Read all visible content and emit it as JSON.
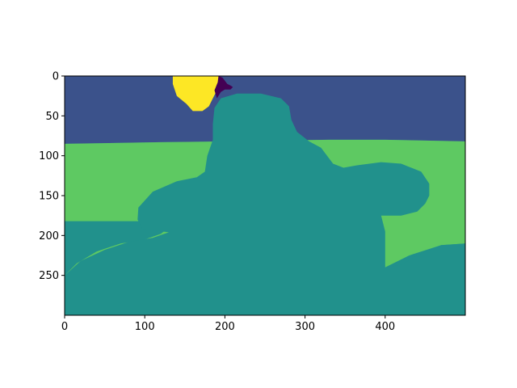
{
  "chart_data": {
    "type": "heatmap",
    "title": "",
    "xlabel": "",
    "ylabel": "",
    "xlim": [
      0,
      500
    ],
    "ylim": [
      300,
      0
    ],
    "grid": false,
    "x_ticks": [
      "0",
      "100",
      "200",
      "300",
      "400"
    ],
    "y_ticks": [
      "0",
      "50",
      "100",
      "150",
      "200",
      "250"
    ],
    "colormap": "viridis",
    "classes": [
      {
        "id": 0,
        "color": "#440154"
      },
      {
        "id": 1,
        "color": "#3b528b"
      },
      {
        "id": 2,
        "color": "#21918c"
      },
      {
        "id": 3,
        "color": "#5ec962"
      },
      {
        "id": 4,
        "color": "#fde725"
      }
    ],
    "regions": [
      {
        "class": 1,
        "polygon": [
          [
            0,
            0
          ],
          [
            500,
            0
          ],
          [
            500,
            82
          ],
          [
            400,
            80
          ],
          [
            330,
            80
          ],
          [
            200,
            82
          ],
          [
            120,
            83
          ],
          [
            0,
            85
          ]
        ]
      },
      {
        "class": 3,
        "polygon": [
          [
            0,
            85
          ],
          [
            120,
            83
          ],
          [
            200,
            82
          ],
          [
            330,
            80
          ],
          [
            400,
            80
          ],
          [
            500,
            82
          ],
          [
            500,
            210
          ],
          [
            470,
            212
          ],
          [
            430,
            225
          ],
          [
            400,
            240
          ],
          [
            360,
            262
          ],
          [
            320,
            272
          ],
          [
            280,
            280
          ],
          [
            250,
            285
          ],
          [
            200,
            300
          ],
          [
            0,
            300
          ],
          [
            0,
            250
          ],
          [
            15,
            235
          ],
          [
            40,
            220
          ],
          [
            70,
            210
          ],
          [
            100,
            205
          ],
          [
            120,
            198
          ],
          [
            130,
            190
          ],
          [
            130,
            182
          ],
          [
            0,
            182
          ]
        ]
      },
      {
        "class": 2,
        "polygon": [
          [
            0,
            250
          ],
          [
            20,
            232
          ],
          [
            50,
            218
          ],
          [
            80,
            208
          ],
          [
            110,
            203
          ],
          [
            130,
            196
          ],
          [
            97,
            192
          ],
          [
            91,
            180
          ],
          [
            92,
            165
          ],
          [
            110,
            145
          ],
          [
            140,
            132
          ],
          [
            165,
            127
          ],
          [
            175,
            120
          ],
          [
            178,
            100
          ],
          [
            185,
            80
          ],
          [
            185,
            60
          ],
          [
            187,
            40
          ],
          [
            195,
            28
          ],
          [
            215,
            22
          ],
          [
            245,
            22
          ],
          [
            270,
            28
          ],
          [
            280,
            38
          ],
          [
            283,
            55
          ],
          [
            290,
            70
          ],
          [
            305,
            82
          ],
          [
            320,
            90
          ],
          [
            335,
            110
          ],
          [
            348,
            115
          ],
          [
            365,
            112
          ],
          [
            395,
            108
          ],
          [
            420,
            110
          ],
          [
            445,
            120
          ],
          [
            455,
            135
          ],
          [
            455,
            150
          ],
          [
            450,
            160
          ],
          [
            440,
            170
          ],
          [
            420,
            175
          ],
          [
            395,
            175
          ],
          [
            400,
            195
          ],
          [
            400,
            240
          ],
          [
            420,
            237
          ],
          [
            440,
            225
          ],
          [
            470,
            212
          ],
          [
            500,
            210
          ],
          [
            500,
            300
          ],
          [
            0,
            300
          ]
        ]
      },
      {
        "class": 4,
        "polygon": [
          [
            135,
            0
          ],
          [
            192,
            0
          ],
          [
            195,
            8
          ],
          [
            190,
            18
          ],
          [
            185,
            28
          ],
          [
            180,
            38
          ],
          [
            172,
            44
          ],
          [
            160,
            44
          ],
          [
            152,
            35
          ],
          [
            140,
            25
          ],
          [
            135,
            10
          ]
        ]
      },
      {
        "class": 0,
        "polygon": [
          [
            192,
            0
          ],
          [
            197,
            2
          ],
          [
            200,
            6
          ],
          [
            203,
            10
          ],
          [
            207,
            12
          ],
          [
            210,
            14
          ],
          [
            207,
            17
          ],
          [
            200,
            17
          ],
          [
            195,
            20
          ],
          [
            190,
            28
          ],
          [
            187,
            18
          ],
          [
            191,
            8
          ]
        ]
      }
    ]
  }
}
